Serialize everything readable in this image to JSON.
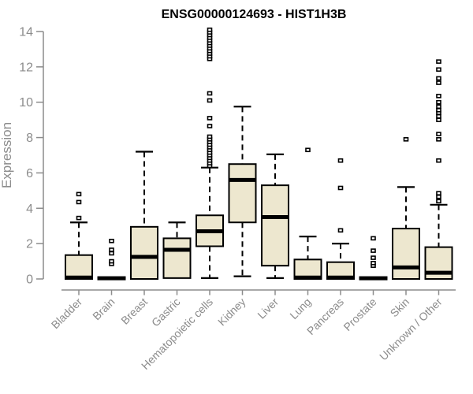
{
  "chart_data": {
    "type": "boxplot",
    "title": "ENSG00000124693 - HIST1H3B",
    "ylabel": "Expression",
    "xlabel": "",
    "ylim": [
      0,
      14
    ],
    "yticks": [
      0,
      2,
      4,
      6,
      8,
      10,
      12,
      14
    ],
    "grid": false,
    "legend": "none",
    "background": "#FFFFFF",
    "box_fill": "#EDE7CF",
    "box_stroke": "#000000",
    "axis_color": "#8C8C8C",
    "categories": [
      "Bladder",
      "Brain",
      "Breast",
      "Gastric",
      "Hematopoietic cells",
      "Kidney",
      "Liver",
      "Lung",
      "Pancreas",
      "Prostate",
      "Skin",
      "Unknown / Other"
    ],
    "series": [
      {
        "category": "Bladder",
        "whisker_low": 0,
        "q1": 0,
        "median": 0.08,
        "q3": 1.35,
        "whisker_high": 3.2,
        "outliers": [
          3.45,
          4.35,
          4.8
        ]
      },
      {
        "category": "Brain",
        "whisker_low": 0,
        "q1": 0,
        "median": 0.04,
        "q3": 0.1,
        "whisker_high": 0.1,
        "outliers": [
          0.85,
          1.0,
          1.45,
          1.65,
          2.15
        ]
      },
      {
        "category": "Breast",
        "whisker_low": 0,
        "q1": 0,
        "median": 1.25,
        "q3": 2.95,
        "whisker_high": 7.2,
        "outliers": []
      },
      {
        "category": "Gastric",
        "whisker_low": 0,
        "q1": 0.05,
        "median": 1.65,
        "q3": 2.3,
        "whisker_high": 3.2,
        "outliers": []
      },
      {
        "category": "Hematopoietic cells",
        "whisker_low": 0.05,
        "q1": 1.85,
        "median": 2.7,
        "q3": 3.6,
        "whisker_high": 6.3,
        "outliers": [
          6.4,
          6.55,
          6.7,
          6.85,
          7.0,
          7.15,
          7.3,
          7.45,
          7.6,
          7.75,
          7.9,
          8.05,
          8.65,
          9.1,
          10.1,
          10.5,
          12.45,
          12.6,
          12.75,
          12.9,
          13.05,
          13.2,
          13.35,
          13.5,
          13.65,
          13.8,
          13.95,
          14.1
        ]
      },
      {
        "category": "Kidney",
        "whisker_low": 0.15,
        "q1": 3.2,
        "median": 5.6,
        "q3": 6.5,
        "whisker_high": 9.75,
        "outliers": []
      },
      {
        "category": "Liver",
        "whisker_low": 0.05,
        "q1": 0.75,
        "median": 3.5,
        "q3": 5.3,
        "whisker_high": 7.05,
        "outliers": []
      },
      {
        "category": "Lung",
        "whisker_low": 0,
        "q1": 0,
        "median": 0.08,
        "q3": 1.1,
        "whisker_high": 2.4,
        "outliers": [
          7.3
        ]
      },
      {
        "category": "Pancreas",
        "whisker_low": 0,
        "q1": 0,
        "median": 0.08,
        "q3": 0.95,
        "whisker_high": 2.0,
        "outliers": [
          2.75,
          5.15,
          6.7
        ]
      },
      {
        "category": "Prostate",
        "whisker_low": 0,
        "q1": 0,
        "median": 0.04,
        "q3": 0.1,
        "whisker_high": 0.1,
        "outliers": [
          0.75,
          0.9,
          1.2,
          1.6,
          2.3
        ]
      },
      {
        "category": "Skin",
        "whisker_low": 0,
        "q1": 0,
        "median": 0.65,
        "q3": 2.85,
        "whisker_high": 5.2,
        "outliers": [
          7.9
        ]
      },
      {
        "category": "Unknown / Other",
        "whisker_low": 0,
        "q1": 0,
        "median": 0.35,
        "q3": 1.8,
        "whisker_high": 4.2,
        "outliers": [
          4.4,
          4.65,
          4.85,
          6.7,
          7.9,
          8.2,
          9.0,
          9.2,
          9.4,
          9.55,
          9.75,
          10.0,
          10.35,
          11.1,
          11.35,
          11.85,
          12.3
        ]
      }
    ]
  }
}
